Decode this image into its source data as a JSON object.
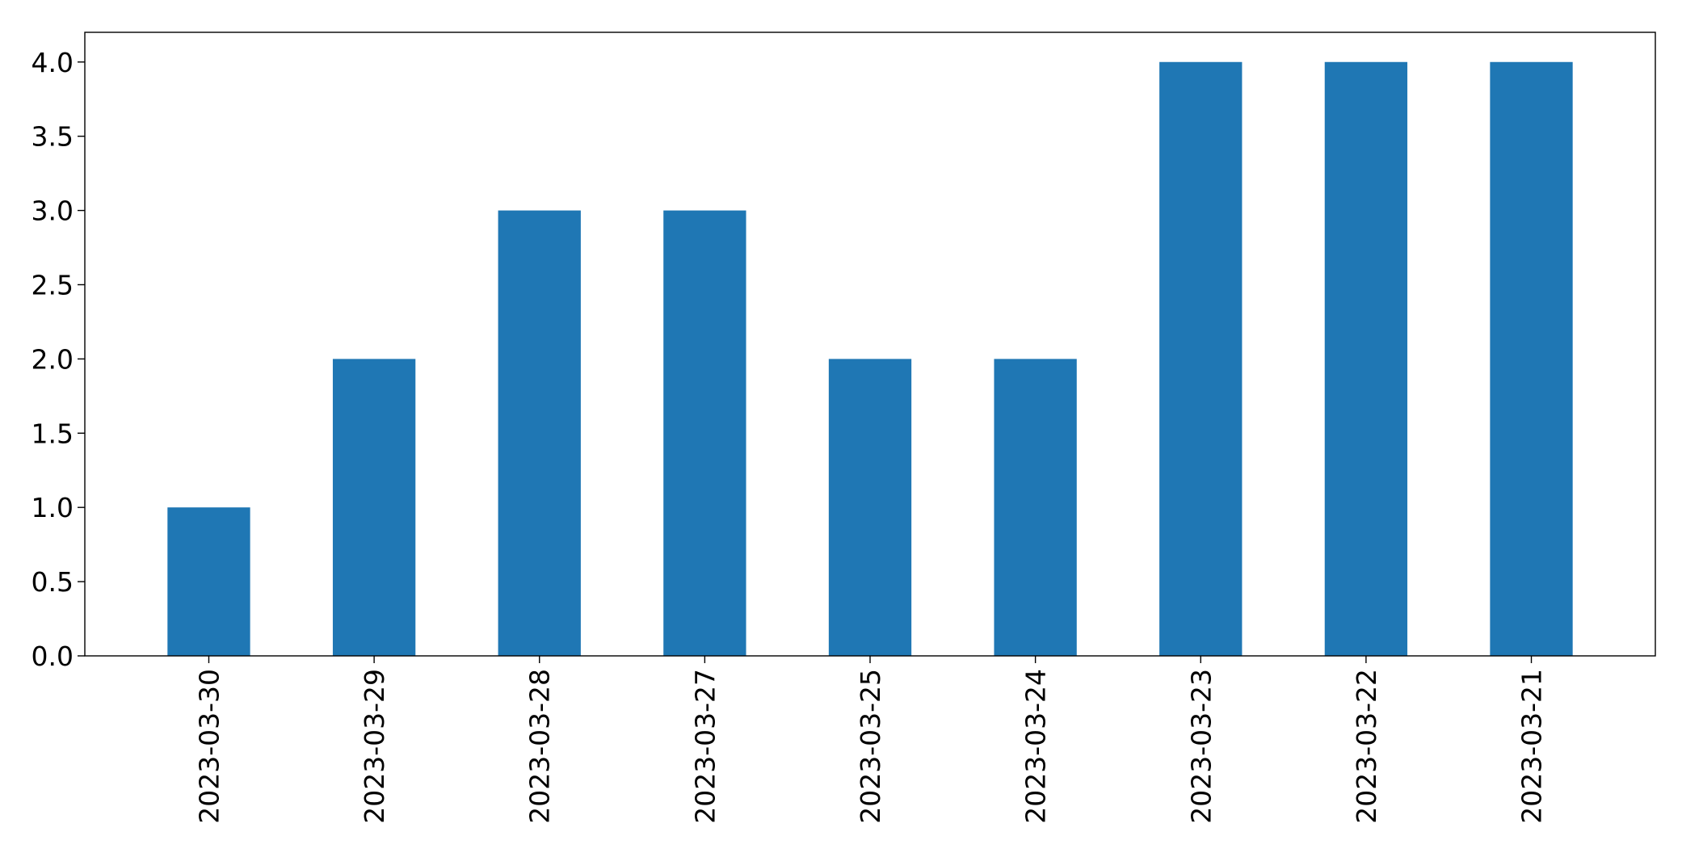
{
  "chart_data": {
    "type": "bar",
    "title": "",
    "xlabel": "",
    "ylabel": "",
    "categories": [
      "2023-03-30",
      "2023-03-29",
      "2023-03-28",
      "2023-03-27",
      "2023-03-25",
      "2023-03-24",
      "2023-03-23",
      "2023-03-22",
      "2023-03-21"
    ],
    "values": [
      1,
      2,
      3,
      3,
      2,
      2,
      4,
      4,
      4
    ],
    "ylim": [
      0,
      4.2
    ],
    "yticks": [
      "0.0",
      "0.5",
      "1.0",
      "1.5",
      "2.0",
      "2.5",
      "3.0",
      "3.5",
      "4.0"
    ],
    "bar_color": "#1f77b4",
    "grid": false,
    "legend": "none"
  }
}
